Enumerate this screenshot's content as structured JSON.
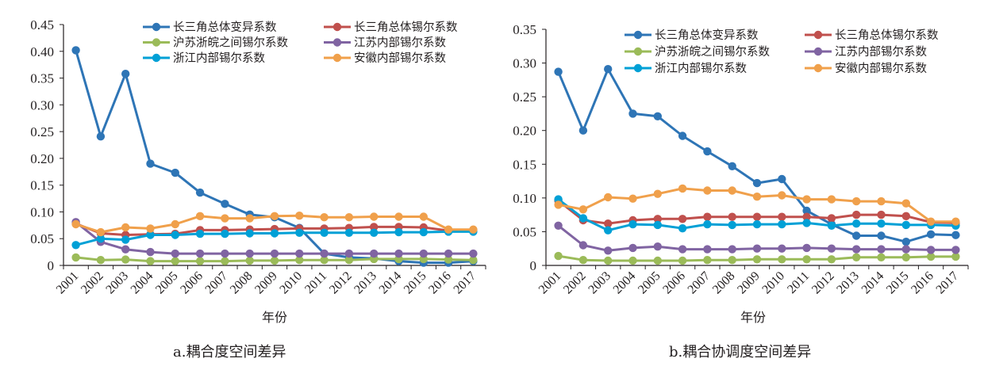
{
  "chart_data": [
    {
      "type": "line",
      "title": "",
      "caption": "a.耦合度空间差异",
      "xlabel": "年份",
      "ylabel": "",
      "ylim": [
        0,
        0.45
      ],
      "yticks": [
        "0",
        "0.05",
        "0.10",
        "0.15",
        "0.20",
        "0.25",
        "0.30",
        "0.35",
        "0.40",
        "0.45"
      ],
      "grid": false,
      "legend_position": "top",
      "categories": [
        "2001",
        "2002",
        "2003",
        "2004",
        "2005",
        "2006",
        "2007",
        "2008",
        "2009",
        "2010",
        "2011",
        "2012",
        "2013",
        "2014",
        "2015",
        "2016",
        "2017"
      ],
      "series": [
        {
          "name": "长三角总体变异系数",
          "color": "#2e75b6",
          "values": [
            0.402,
            0.241,
            0.358,
            0.19,
            0.173,
            0.136,
            0.115,
            0.095,
            0.09,
            0.07,
            0.022,
            0.015,
            0.013,
            0.008,
            0.005,
            0.005,
            0.008
          ]
        },
        {
          "name": "长三角总体锡尔系数",
          "color": "#c0504d",
          "values": [
            0.078,
            0.06,
            0.057,
            0.058,
            0.059,
            0.066,
            0.066,
            0.067,
            0.068,
            0.069,
            0.069,
            0.07,
            0.072,
            0.072,
            0.071,
            0.065,
            0.066
          ]
        },
        {
          "name": "沪苏浙皖之间锡尔系数",
          "color": "#9bbb59",
          "values": [
            0.015,
            0.01,
            0.011,
            0.008,
            0.008,
            0.008,
            0.008,
            0.009,
            0.009,
            0.01,
            0.01,
            0.01,
            0.012,
            0.012,
            0.012,
            0.011,
            0.01
          ]
        },
        {
          "name": "江苏内部锡尔系数",
          "color": "#8064a2",
          "values": [
            0.081,
            0.044,
            0.03,
            0.025,
            0.022,
            0.022,
            0.022,
            0.022,
            0.022,
            0.022,
            0.022,
            0.022,
            0.022,
            0.022,
            0.022,
            0.022,
            0.022
          ]
        },
        {
          "name": "浙江内部锡尔系数",
          "color": "#00a0d6",
          "values": [
            0.038,
            0.05,
            0.048,
            0.057,
            0.057,
            0.059,
            0.059,
            0.06,
            0.06,
            0.061,
            0.061,
            0.061,
            0.061,
            0.062,
            0.062,
            0.063,
            0.063
          ]
        },
        {
          "name": "安徽内部锡尔系数",
          "color": "#f0a04b",
          "values": [
            0.077,
            0.062,
            0.071,
            0.069,
            0.077,
            0.092,
            0.088,
            0.088,
            0.092,
            0.093,
            0.09,
            0.09,
            0.091,
            0.091,
            0.091,
            0.067,
            0.067
          ]
        }
      ]
    },
    {
      "type": "line",
      "title": "",
      "caption": "b.耦合协调度空间差异",
      "xlabel": "年份",
      "ylabel": "",
      "ylim": [
        0,
        0.35
      ],
      "yticks": [
        "0",
        "0.05",
        "0.10",
        "0.15",
        "0.20",
        "0.25",
        "0.30",
        "0.35"
      ],
      "grid": false,
      "legend_position": "top",
      "categories": [
        "2001",
        "2002",
        "2003",
        "2004",
        "2005",
        "2006",
        "2007",
        "2008",
        "2009",
        "2010",
        "2011",
        "2012",
        "2013",
        "2014",
        "2015",
        "2016",
        "2017"
      ],
      "series": [
        {
          "name": "长三角总体变异系数",
          "color": "#2e75b6",
          "values": [
            0.287,
            0.2,
            0.291,
            0.225,
            0.221,
            0.192,
            0.169,
            0.147,
            0.122,
            0.128,
            0.081,
            0.061,
            0.044,
            0.044,
            0.035,
            0.046,
            0.045
          ]
        },
        {
          "name": "长三角总体锡尔系数",
          "color": "#c0504d",
          "values": [
            0.096,
            0.067,
            0.062,
            0.067,
            0.069,
            0.069,
            0.072,
            0.072,
            0.072,
            0.072,
            0.072,
            0.07,
            0.075,
            0.075,
            0.073,
            0.064,
            0.063
          ]
        },
        {
          "name": "沪苏浙皖之间锡尔系数",
          "color": "#9bbb59",
          "values": [
            0.014,
            0.008,
            0.007,
            0.007,
            0.007,
            0.007,
            0.008,
            0.008,
            0.009,
            0.009,
            0.009,
            0.009,
            0.012,
            0.012,
            0.012,
            0.013,
            0.013
          ]
        },
        {
          "name": "江苏内部锡尔系数",
          "color": "#8064a2",
          "values": [
            0.059,
            0.03,
            0.022,
            0.026,
            0.028,
            0.024,
            0.024,
            0.024,
            0.025,
            0.025,
            0.026,
            0.025,
            0.024,
            0.024,
            0.024,
            0.023,
            0.023
          ]
        },
        {
          "name": "浙江内部锡尔系数",
          "color": "#00a0d6",
          "values": [
            0.098,
            0.07,
            0.052,
            0.061,
            0.06,
            0.055,
            0.061,
            0.06,
            0.061,
            0.061,
            0.063,
            0.059,
            0.062,
            0.062,
            0.06,
            0.06,
            0.059
          ]
        },
        {
          "name": "安徽内部锡尔系数",
          "color": "#f0a04b",
          "values": [
            0.09,
            0.083,
            0.101,
            0.099,
            0.106,
            0.114,
            0.111,
            0.111,
            0.102,
            0.104,
            0.098,
            0.098,
            0.095,
            0.095,
            0.092,
            0.065,
            0.065
          ]
        }
      ]
    }
  ]
}
